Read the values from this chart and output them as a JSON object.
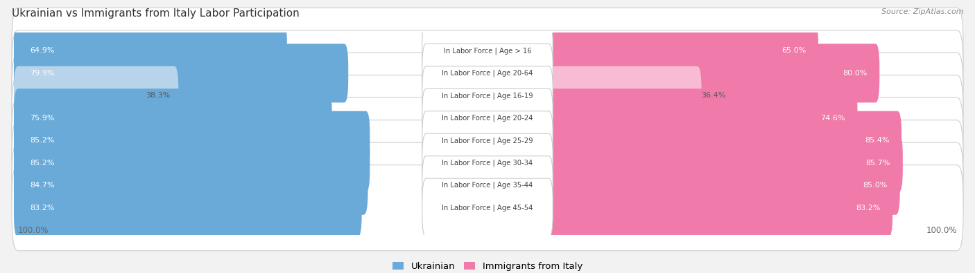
{
  "title": "Ukrainian vs Immigrants from Italy Labor Participation",
  "source": "Source: ZipAtlas.com",
  "categories": [
    "In Labor Force | Age > 16",
    "In Labor Force | Age 20-64",
    "In Labor Force | Age 16-19",
    "In Labor Force | Age 20-24",
    "In Labor Force | Age 25-29",
    "In Labor Force | Age 30-34",
    "In Labor Force | Age 35-44",
    "In Labor Force | Age 45-54"
  ],
  "ukrainian_values": [
    64.9,
    79.9,
    38.3,
    75.9,
    85.2,
    85.2,
    84.7,
    83.2
  ],
  "italy_values": [
    65.0,
    80.0,
    36.4,
    74.6,
    85.4,
    85.7,
    85.0,
    83.2
  ],
  "ukrainian_color_strong": "#6aaad8",
  "ukrainian_color_light": "#b8d4ea",
  "italy_color_strong": "#f07aaa",
  "italy_color_light": "#f7bbd4",
  "background_color": "#f2f2f2",
  "row_bg_color": "#ffffff",
  "label_bg_color": "#ffffff",
  "max_value": 100.0,
  "legend_ukrainian": "Ukrainian",
  "legend_italy": "Immigrants from Italy",
  "threshold": 60
}
